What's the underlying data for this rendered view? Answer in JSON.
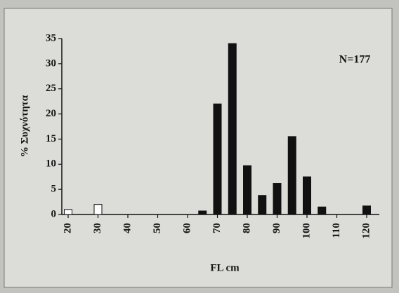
{
  "chart_data": {
    "type": "bar",
    "y_label": "% Συχνότητα",
    "x_label": "FL cm",
    "annotation": "N=177",
    "categories": [
      "20",
      null,
      "30",
      null,
      "40",
      null,
      "50",
      null,
      "60",
      null,
      "70",
      null,
      "80",
      null,
      "90",
      null,
      "100",
      null,
      "110",
      null,
      "120"
    ],
    "values": [
      1,
      0,
      2,
      0,
      0,
      0,
      0,
      0,
      0,
      0.7,
      22,
      34,
      9.7,
      3.8,
      6.2,
      15.5,
      7.5,
      1.5,
      0,
      0,
      1.7
    ],
    "colors": [
      "#ffffff",
      "#ffffff",
      "#ffffff",
      "#111111",
      "#111111",
      "#111111",
      "#111111",
      "#111111",
      "#111111",
      "#111111",
      "#111111",
      "#111111",
      "#111111",
      "#111111",
      "#111111",
      "#111111",
      "#111111",
      "#111111",
      "#111111",
      "#111111",
      "#111111"
    ],
    "ylim": [
      0,
      35
    ],
    "yticks": [
      0,
      5,
      10,
      15,
      20,
      25,
      30,
      35
    ],
    "grid": false
  }
}
